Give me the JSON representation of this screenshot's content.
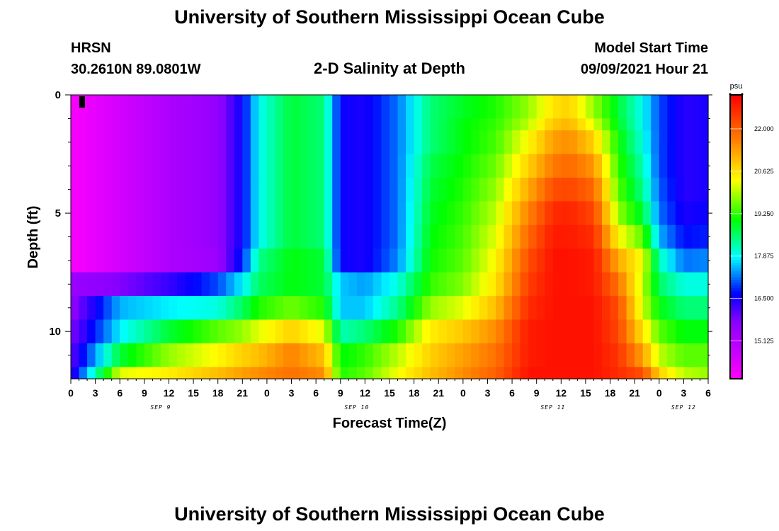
{
  "header": {
    "title": "University of Southern Mississippi Ocean Cube",
    "station": "HRSN",
    "coords": "30.2610N  89.0801W",
    "plot_title": "2-D Salinity at Depth",
    "model_start_label": "Model Start Time",
    "model_start_value": "09/09/2021 Hour 21"
  },
  "footer": {
    "title": "University of Southern Mississippi Ocean Cube"
  },
  "chart_data": {
    "type": "heatmap",
    "title": "2-D Salinity at Depth",
    "xlabel": "Forecast Time(Z)",
    "ylabel": "Depth (ft)",
    "x_tick_labels": [
      "0",
      "3",
      "6",
      "9",
      "12",
      "15",
      "18",
      "21",
      "0",
      "3",
      "6",
      "9",
      "12",
      "15",
      "18",
      "21",
      "0",
      "3",
      "6",
      "9",
      "12",
      "15",
      "18",
      "21",
      "0",
      "3",
      "6"
    ],
    "x_tick_hours": [
      0,
      3,
      6,
      9,
      12,
      15,
      18,
      21,
      24,
      27,
      30,
      33,
      36,
      39,
      42,
      45,
      48,
      51,
      54,
      57,
      60,
      63,
      66,
      69,
      72,
      75,
      78
    ],
    "date_labels": [
      {
        "text": "SEP 9",
        "hour": 11
      },
      {
        "text": "SEP 10",
        "hour": 35
      },
      {
        "text": "SEP 11",
        "hour": 59
      },
      {
        "text": "SEP 12",
        "hour": 75
      }
    ],
    "xlim": [
      0,
      78
    ],
    "y_tick_labels": [
      "0",
      "5",
      "10"
    ],
    "y_tick_values": [
      0,
      5,
      10
    ],
    "ylim": [
      0,
      12
    ],
    "colorbar": {
      "unit": "psu",
      "tick_labels": [
        "22.000",
        "20.625",
        "19.250",
        "17.875",
        "16.500",
        "15.125"
      ],
      "tick_values": [
        22.0,
        20.625,
        19.25,
        17.875,
        16.5,
        15.125
      ],
      "range": [
        13.9,
        23.1
      ]
    },
    "depth_layers": [
      "0-1",
      "1-1.5",
      "1.5-2.5",
      "2.5-3.5",
      "3.5-4.5",
      "4.5-5.5",
      "5.5-6.5",
      "6.5-7.5",
      "7.5-8.5",
      "8.5-9.5",
      "9.5-10.5",
      "10.5-11.5",
      "11.5-12"
    ],
    "salinity_keyframes": [
      {
        "hour": 0,
        "layers": [
          14.0,
          14.0,
          14.0,
          14.0,
          14.0,
          14.0,
          14.0,
          14.0,
          15.5,
          15.6,
          15.8,
          16.0,
          16.2
        ]
      },
      {
        "hour": 6,
        "layers": [
          14.6,
          14.6,
          14.6,
          14.6,
          14.6,
          14.6,
          14.6,
          14.6,
          15.8,
          17.5,
          17.8,
          18.8,
          20.2
        ]
      },
      {
        "hour": 12,
        "layers": [
          15.2,
          15.2,
          15.2,
          15.2,
          15.2,
          15.2,
          15.2,
          15.2,
          16.3,
          17.8,
          18.8,
          19.8,
          20.5
        ]
      },
      {
        "hour": 18,
        "layers": [
          15.6,
          15.6,
          15.6,
          15.6,
          15.6,
          15.6,
          15.6,
          15.5,
          17.0,
          18.0,
          19.5,
          20.4,
          21.0
        ]
      },
      {
        "hour": 21,
        "layers": [
          16.6,
          16.6,
          16.6,
          16.6,
          16.6,
          16.6,
          16.6,
          16.8,
          17.8,
          18.6,
          19.8,
          20.8,
          21.3
        ]
      },
      {
        "hour": 23,
        "layers": [
          17.9,
          17.9,
          17.9,
          17.9,
          17.9,
          17.9,
          17.9,
          18.4,
          18.6,
          19.2,
          20.2,
          21.0,
          21.5
        ]
      },
      {
        "hour": 27,
        "layers": [
          18.8,
          18.8,
          18.8,
          18.8,
          18.8,
          18.8,
          18.8,
          19.0,
          19.0,
          19.6,
          20.8,
          21.6,
          21.8
        ]
      },
      {
        "hour": 31,
        "layers": [
          18.5,
          18.5,
          18.5,
          18.5,
          18.5,
          18.5,
          18.5,
          18.8,
          18.8,
          19.2,
          20.2,
          21.0,
          21.5
        ]
      },
      {
        "hour": 33,
        "layers": [
          16.6,
          16.6,
          16.6,
          16.6,
          16.6,
          16.6,
          16.6,
          16.6,
          17.6,
          17.6,
          18.2,
          19.0,
          19.2
        ]
      },
      {
        "hour": 36,
        "layers": [
          16.5,
          16.5,
          16.5,
          16.5,
          16.5,
          16.5,
          16.5,
          16.5,
          17.4,
          17.6,
          18.5,
          19.3,
          19.5
        ]
      },
      {
        "hour": 40,
        "layers": [
          17.2,
          17.2,
          17.2,
          17.2,
          17.2,
          17.2,
          17.2,
          17.3,
          18.0,
          18.4,
          19.2,
          20.0,
          20.3
        ]
      },
      {
        "hour": 44,
        "layers": [
          18.5,
          18.5,
          18.5,
          18.7,
          18.8,
          18.9,
          19.0,
          19.1,
          19.3,
          19.8,
          20.5,
          20.8,
          21.0
        ]
      },
      {
        "hour": 48,
        "layers": [
          18.9,
          19.0,
          19.0,
          19.1,
          19.2,
          19.3,
          19.4,
          19.5,
          19.7,
          20.2,
          20.9,
          21.3,
          21.5
        ]
      },
      {
        "hour": 52,
        "layers": [
          19.2,
          19.3,
          19.4,
          19.6,
          19.8,
          20.0,
          20.2,
          20.4,
          20.6,
          21.0,
          21.5,
          21.8,
          22.0
        ]
      },
      {
        "hour": 56,
        "layers": [
          19.8,
          20.0,
          20.4,
          20.8,
          21.2,
          21.6,
          21.9,
          22.2,
          22.4,
          22.6,
          22.8,
          22.8,
          22.9
        ]
      },
      {
        "hour": 59,
        "layers": [
          20.6,
          20.9,
          21.3,
          21.7,
          22.2,
          22.6,
          22.8,
          22.9,
          22.9,
          22.9,
          22.9,
          22.9,
          22.9
        ]
      },
      {
        "hour": 61,
        "layers": [
          20.8,
          21.1,
          21.5,
          21.9,
          22.3,
          22.7,
          22.8,
          22.9,
          22.9,
          22.9,
          22.9,
          22.9,
          22.9
        ]
      },
      {
        "hour": 64,
        "layers": [
          19.8,
          20.2,
          20.8,
          21.4,
          21.9,
          22.3,
          22.6,
          22.8,
          22.8,
          22.9,
          22.9,
          22.9,
          22.9
        ]
      },
      {
        "hour": 67,
        "layers": [
          18.8,
          18.9,
          19.1,
          19.3,
          19.5,
          19.8,
          20.4,
          21.2,
          21.8,
          22.2,
          22.3,
          22.5,
          22.6
        ]
      },
      {
        "hour": 70,
        "layers": [
          17.9,
          17.9,
          18.0,
          18.2,
          18.4,
          18.8,
          19.5,
          20.3,
          20.0,
          20.1,
          20.6,
          21.3,
          22.2
        ]
      },
      {
        "hour": 72,
        "layers": [
          17.0,
          17.0,
          17.0,
          17.0,
          17.1,
          17.2,
          17.5,
          18.2,
          18.6,
          19.0,
          19.5,
          20.0,
          20.8
        ]
      },
      {
        "hour": 75,
        "layers": [
          16.4,
          16.4,
          16.4,
          16.4,
          16.4,
          16.5,
          16.7,
          17.2,
          18.0,
          18.5,
          19.0,
          19.5,
          20.0
        ]
      },
      {
        "hour": 78,
        "layers": [
          16.5,
          16.5,
          16.5,
          16.5,
          16.5,
          16.6,
          16.8,
          17.3,
          18.0,
          18.5,
          19.0,
          19.5,
          19.8
        ]
      }
    ]
  }
}
